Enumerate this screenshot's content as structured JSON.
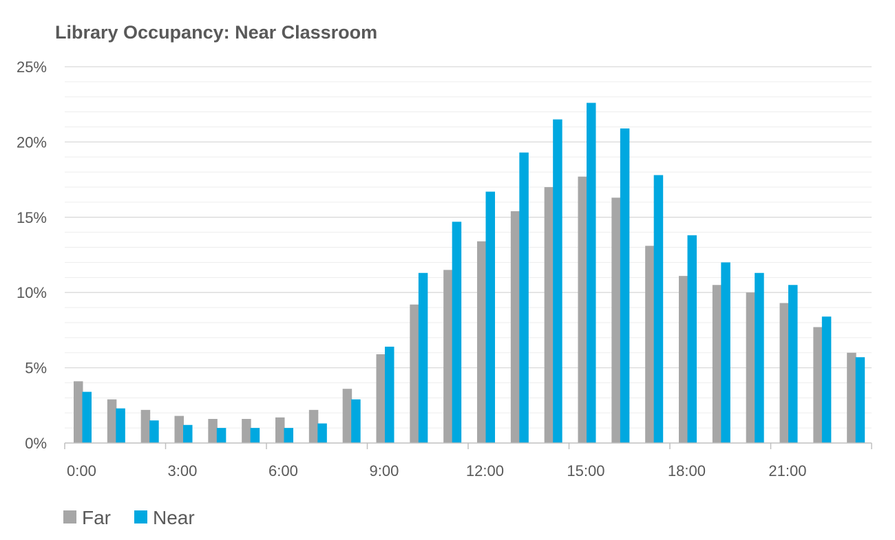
{
  "chart_data": {
    "type": "bar",
    "title": "Library Occupancy: Near Classroom",
    "xlabel": "",
    "ylabel": "",
    "ylim": [
      0,
      25
    ],
    "y_tick_values": [
      0,
      5,
      10,
      15,
      20,
      25
    ],
    "y_tick_labels": [
      "0%",
      "5%",
      "10%",
      "15%",
      "20%",
      "25%"
    ],
    "minor_gridlines": true,
    "legend_placement": "bottom-left",
    "categories": [
      "0:00",
      "1:00",
      "2:00",
      "3:00",
      "4:00",
      "5:00",
      "6:00",
      "7:00",
      "8:00",
      "9:00",
      "10:00",
      "11:00",
      "12:00",
      "13:00",
      "14:00",
      "15:00",
      "16:00",
      "17:00",
      "18:00",
      "19:00",
      "20:00",
      "21:00",
      "22:00",
      "23:00"
    ],
    "x_tick_labels_shown": [
      "0:00",
      "3:00",
      "6:00",
      "9:00",
      "12:00",
      "15:00",
      "18:00",
      "21:00"
    ],
    "series": [
      {
        "name": "Far",
        "color": "#A6A6A6",
        "values": [
          4.1,
          2.9,
          2.2,
          1.8,
          1.6,
          1.6,
          1.7,
          2.2,
          3.6,
          5.9,
          9.2,
          11.5,
          13.4,
          15.4,
          17.0,
          17.7,
          16.3,
          13.1,
          11.1,
          10.5,
          10.0,
          9.3,
          7.7,
          6.0
        ]
      },
      {
        "name": "Near",
        "color": "#00A8E0",
        "values": [
          3.4,
          2.3,
          1.5,
          1.2,
          1.0,
          1.0,
          1.0,
          1.3,
          2.9,
          6.4,
          11.3,
          14.7,
          16.7,
          19.3,
          21.5,
          22.6,
          20.9,
          17.8,
          13.8,
          12.0,
          11.3,
          10.5,
          8.4,
          5.7
        ]
      }
    ]
  }
}
